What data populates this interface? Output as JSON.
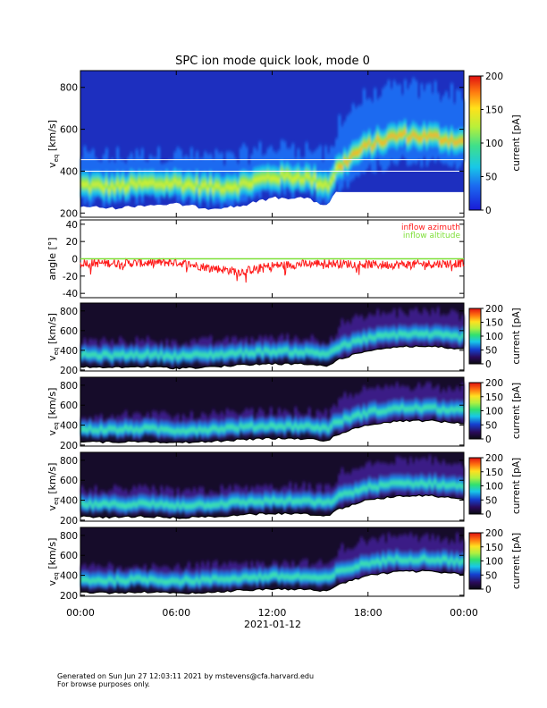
{
  "chart_data": {
    "type": "heatmap",
    "title": "SPC ion mode quick look, mode 0",
    "time_axis": {
      "ticks": [
        "00:00",
        "06:00",
        "12:00",
        "18:00",
        "00:00"
      ],
      "date_label": "2021-01-12",
      "range_hours": [
        0,
        24
      ]
    },
    "panels": [
      {
        "kind": "spectrogram",
        "ylabel": "v",
        "ylabel_sub": "eq",
        "ylabel_unit": " [km/s]",
        "yticks": [
          "200",
          "400",
          "600",
          "800"
        ],
        "ylim": [
          180,
          880
        ],
        "colorbar": {
          "label": "current [pA]",
          "ticks": [
            "0",
            "50",
            "100",
            "150",
            "200"
          ],
          "range": [
            0,
            200
          ]
        },
        "palette": "rainbow-blue",
        "reference_lines_kms": [
          455,
          400
        ],
        "speed_trace_hours": [
          0,
          2,
          4,
          6,
          8,
          10,
          12,
          14,
          15.5,
          16,
          17,
          18,
          20,
          22,
          24
        ],
        "speed_trace_kms": [
          330,
          320,
          335,
          340,
          320,
          330,
          370,
          370,
          330,
          400,
          470,
          520,
          570,
          560,
          540
        ]
      },
      {
        "kind": "angle",
        "ylabel": "angle [°]",
        "yticks": [
          "-40",
          "-20",
          "0",
          "20",
          "40"
        ],
        "ylim": [
          -45,
          45
        ],
        "legend": [
          {
            "label": "inflow azimuth",
            "color": "#ff1a1a"
          },
          {
            "label": "inflow altitude",
            "color": "#7fe03a"
          }
        ],
        "azimuth_hours": [
          0,
          3,
          6,
          8,
          10,
          12,
          15,
          17,
          19,
          22,
          24
        ],
        "azimuth_deg": [
          -5,
          -5,
          -4,
          -10,
          -15,
          -8,
          -5,
          -6,
          -7,
          -6,
          -5
        ],
        "altitude_deg": 0
      },
      {
        "kind": "spectrogram",
        "ylabel": "v",
        "ylabel_sub": "eq",
        "ylabel_unit": " [km/s]",
        "yticks": [
          "200",
          "400",
          "600",
          "800"
        ],
        "ylim": [
          190,
          880
        ],
        "colorbar": {
          "label": "current [pA]",
          "ticks": [
            "0",
            "50",
            "100",
            "150",
            "200"
          ],
          "range": [
            0,
            200
          ]
        },
        "palette": "dark-blue-green",
        "reference_lines_kms": [],
        "speed_trace_hours": [
          0,
          2,
          4,
          6,
          8,
          10,
          12,
          14,
          15.5,
          16,
          17,
          18,
          20,
          22,
          24
        ],
        "speed_trace_kms": [
          350,
          345,
          355,
          340,
          350,
          370,
          385,
          380,
          360,
          420,
          470,
          520,
          560,
          560,
          530
        ]
      },
      {
        "kind": "spectrogram",
        "ylabel": "v",
        "ylabel_sub": "eq",
        "ylabel_unit": " [km/s]",
        "yticks": [
          "200",
          "400",
          "600",
          "800"
        ],
        "ylim": [
          190,
          880
        ],
        "colorbar": {
          "label": "current [pA]",
          "ticks": [
            "0",
            "50",
            "100",
            "150",
            "200"
          ],
          "range": [
            0,
            200
          ]
        },
        "palette": "dark-blue-green",
        "reference_lines_kms": [],
        "speed_trace_hours": [
          0,
          2,
          4,
          6,
          8,
          10,
          12,
          14,
          15.5,
          16,
          17,
          18,
          20,
          22,
          24
        ],
        "speed_trace_kms": [
          355,
          350,
          360,
          345,
          355,
          375,
          390,
          385,
          365,
          425,
          475,
          525,
          565,
          565,
          535
        ]
      },
      {
        "kind": "spectrogram",
        "ylabel": "v",
        "ylabel_sub": "eq",
        "ylabel_unit": " [km/s]",
        "yticks": [
          "200",
          "400",
          "600",
          "800"
        ],
        "ylim": [
          190,
          880
        ],
        "colorbar": {
          "label": "current [pA]",
          "ticks": [
            "0",
            "50",
            "100",
            "150",
            "200"
          ],
          "range": [
            0,
            200
          ]
        },
        "palette": "dark-blue-green",
        "reference_lines_kms": [],
        "speed_trace_hours": [
          0,
          2,
          4,
          6,
          8,
          10,
          12,
          14,
          15.5,
          16,
          17,
          18,
          20,
          22,
          24
        ],
        "speed_trace_kms": [
          355,
          350,
          360,
          345,
          355,
          375,
          390,
          385,
          365,
          425,
          475,
          525,
          565,
          565,
          535
        ]
      },
      {
        "kind": "spectrogram",
        "ylabel": "v",
        "ylabel_sub": "eq",
        "ylabel_unit": " [km/s]",
        "yticks": [
          "200",
          "400",
          "600",
          "800"
        ],
        "ylim": [
          190,
          880
        ],
        "colorbar": {
          "label": "current [pA]",
          "ticks": [
            "0",
            "50",
            "100",
            "150",
            "200"
          ],
          "range": [
            0,
            200
          ]
        },
        "palette": "dark-blue-green",
        "reference_lines_kms": [],
        "speed_trace_hours": [
          0,
          2,
          4,
          6,
          8,
          10,
          12,
          14,
          15.5,
          16,
          17,
          18,
          20,
          22,
          24
        ],
        "speed_trace_kms": [
          350,
          345,
          355,
          340,
          350,
          370,
          385,
          380,
          360,
          420,
          470,
          520,
          560,
          560,
          530
        ]
      }
    ]
  },
  "footer": {
    "line1": "Generated on Sun Jun 27 12:03:11 2021 by mstevens@cfa.harvard.edu",
    "line2": "For browse purposes only."
  }
}
